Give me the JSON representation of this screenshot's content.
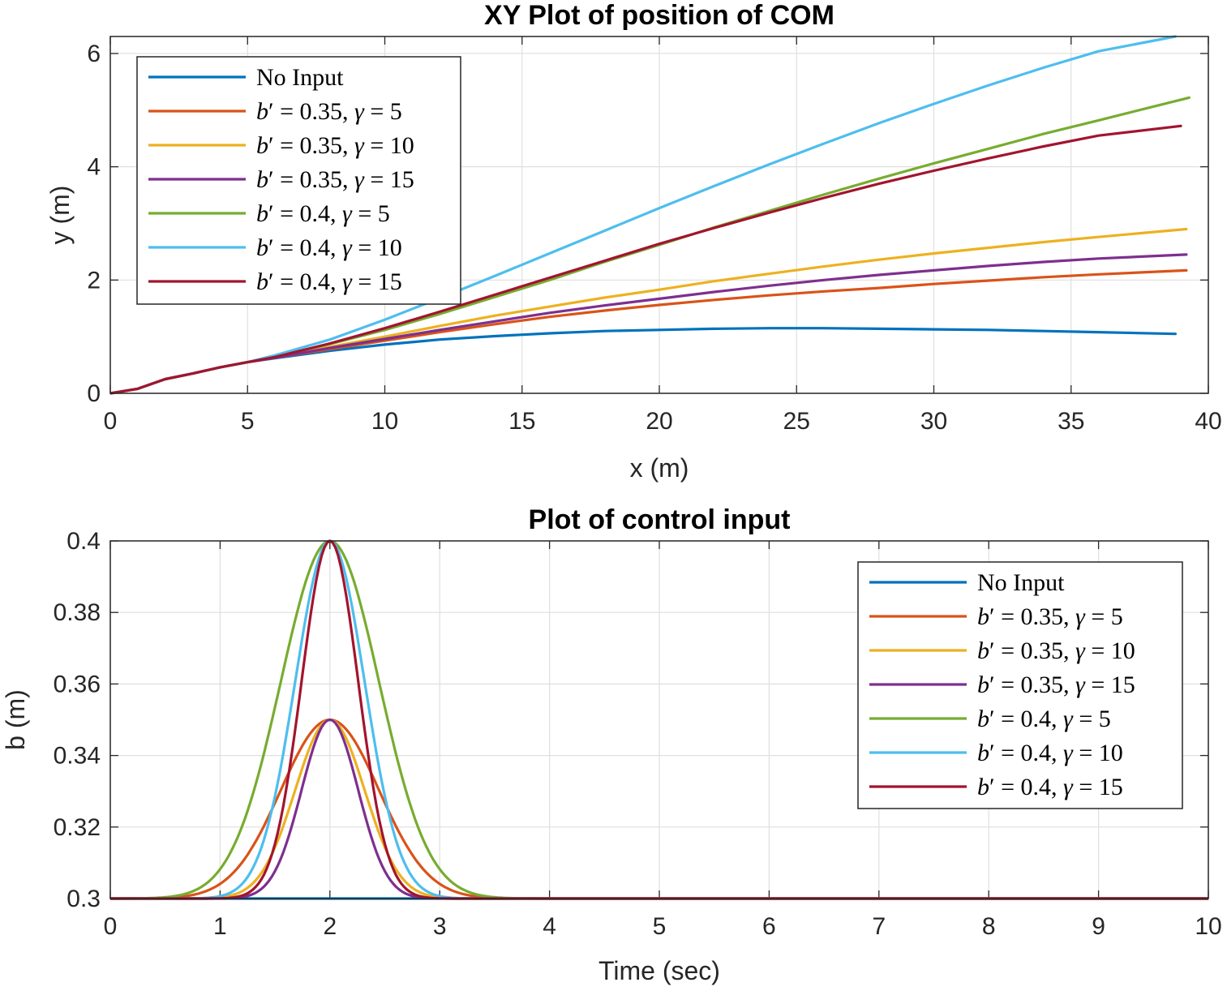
{
  "chart_data": [
    {
      "type": "line",
      "title": "XY Plot of position of COM",
      "xlabel": "x (m)",
      "ylabel": "y (m)",
      "xlim": [
        0,
        40
      ],
      "ylim": [
        0,
        6.3
      ],
      "xticks": [
        "0",
        "5",
        "10",
        "15",
        "20",
        "25",
        "30",
        "35",
        "40"
      ],
      "yticks": [
        "0",
        "2",
        "4",
        "6"
      ],
      "grid": true,
      "legend_position": "top-left",
      "series": [
        {
          "name": "No Input",
          "color": "#0072BD",
          "x": [
            0,
            1,
            2,
            3,
            4,
            5,
            6,
            8,
            10,
            12,
            14,
            16,
            18,
            20,
            22,
            24,
            26,
            28,
            30,
            32,
            34,
            36,
            38.8
          ],
          "y": [
            0,
            0.08,
            0.25,
            0.35,
            0.46,
            0.55,
            0.62,
            0.75,
            0.86,
            0.95,
            1.01,
            1.06,
            1.1,
            1.12,
            1.14,
            1.15,
            1.15,
            1.14,
            1.13,
            1.12,
            1.1,
            1.08,
            1.05
          ]
        },
        {
          "name": "b' = 0.35, γ = 5",
          "color": "#D95319",
          "x": [
            0,
            1,
            2,
            3,
            4,
            5,
            6,
            8,
            10,
            12,
            14,
            16,
            18,
            20,
            22,
            24,
            26,
            28,
            30,
            32,
            34,
            36,
            39.2
          ],
          "y": [
            0,
            0.08,
            0.25,
            0.35,
            0.46,
            0.55,
            0.63,
            0.78,
            0.93,
            1.08,
            1.22,
            1.35,
            1.46,
            1.56,
            1.65,
            1.73,
            1.8,
            1.86,
            1.93,
            1.99,
            2.05,
            2.1,
            2.17
          ]
        },
        {
          "name": "b' = 0.35, γ = 10",
          "color": "#EDB120",
          "x": [
            0,
            1,
            2,
            3,
            4,
            5,
            6,
            8,
            10,
            12,
            14,
            16,
            18,
            20,
            22,
            24,
            26,
            28,
            30,
            32,
            34,
            36,
            39.2
          ],
          "y": [
            0,
            0.08,
            0.25,
            0.35,
            0.46,
            0.55,
            0.64,
            0.82,
            1.0,
            1.19,
            1.37,
            1.53,
            1.69,
            1.83,
            1.98,
            2.11,
            2.24,
            2.36,
            2.47,
            2.57,
            2.67,
            2.76,
            2.9
          ]
        },
        {
          "name": "b' = 0.35, γ = 15",
          "color": "#7E2F8E",
          "x": [
            0,
            1,
            2,
            3,
            4,
            5,
            6,
            8,
            10,
            12,
            14,
            16,
            18,
            20,
            22,
            24,
            26,
            28,
            30,
            32,
            34,
            36,
            39.2
          ],
          "y": [
            0,
            0.08,
            0.25,
            0.35,
            0.46,
            0.55,
            0.63,
            0.8,
            0.96,
            1.12,
            1.27,
            1.42,
            1.55,
            1.67,
            1.79,
            1.9,
            2.0,
            2.09,
            2.17,
            2.25,
            2.32,
            2.38,
            2.45
          ]
        },
        {
          "name": "b' = 0.4, γ = 5",
          "color": "#77AC30",
          "x": [
            0,
            1,
            2,
            3,
            4,
            5,
            6,
            8,
            10,
            12,
            14,
            16,
            18,
            20,
            22,
            24,
            26,
            28,
            30,
            32,
            34,
            36,
            39.3
          ],
          "y": [
            0,
            0.08,
            0.25,
            0.35,
            0.46,
            0.55,
            0.65,
            0.87,
            1.12,
            1.4,
            1.7,
            2.0,
            2.32,
            2.62,
            2.93,
            3.22,
            3.51,
            3.79,
            4.06,
            4.32,
            4.58,
            4.82,
            5.22
          ]
        },
        {
          "name": "b' = 0.4, γ = 10",
          "color": "#4DBEEE",
          "x": [
            0,
            1,
            2,
            3,
            4,
            5,
            6,
            8,
            10,
            12,
            14,
            16,
            18,
            20,
            22,
            24,
            26,
            28,
            30,
            32,
            34,
            36,
            38.8
          ],
          "y": [
            0,
            0.08,
            0.25,
            0.35,
            0.46,
            0.55,
            0.67,
            0.95,
            1.3,
            1.68,
            2.07,
            2.47,
            2.87,
            3.27,
            3.66,
            4.04,
            4.41,
            4.77,
            5.11,
            5.44,
            5.75,
            6.04,
            6.3
          ]
        },
        {
          "name": "b' = 0.4, γ = 15",
          "color": "#A2142F",
          "x": [
            0,
            1,
            2,
            3,
            4,
            5,
            6,
            8,
            10,
            12,
            14,
            16,
            18,
            20,
            22,
            24,
            26,
            28,
            30,
            32,
            34,
            36,
            39.0
          ],
          "y": [
            0,
            0.08,
            0.25,
            0.35,
            0.46,
            0.55,
            0.64,
            0.88,
            1.15,
            1.44,
            1.74,
            2.04,
            2.34,
            2.64,
            2.92,
            3.19,
            3.45,
            3.7,
            3.93,
            4.15,
            4.36,
            4.55,
            4.72
          ]
        }
      ]
    },
    {
      "type": "line",
      "title": "Plot of control input",
      "xlabel": "Time (sec)",
      "ylabel": "b (m)",
      "xlim": [
        0,
        10
      ],
      "ylim": [
        0.3,
        0.4
      ],
      "xticks": [
        "0",
        "1",
        "2",
        "3",
        "4",
        "5",
        "6",
        "7",
        "8",
        "9",
        "10"
      ],
      "yticks": [
        "0.3",
        "0.32",
        "0.34",
        "0.36",
        "0.38",
        "0.4"
      ],
      "grid": true,
      "legend_position": "top-right",
      "signal": "b(t) = 0.3 + (b' - 0.3) * exp(-(gamma/2) * (t - 2)^2)",
      "series": [
        {
          "name": "No Input",
          "color": "#0072BD",
          "b_peak": 0.3,
          "gamma": 0
        },
        {
          "name": "b' = 0.35, γ = 5",
          "color": "#D95319",
          "b_peak": 0.35,
          "gamma": 5
        },
        {
          "name": "b' = 0.35, γ = 10",
          "color": "#EDB120",
          "b_peak": 0.35,
          "gamma": 10
        },
        {
          "name": "b' = 0.35, γ = 15",
          "color": "#7E2F8E",
          "b_peak": 0.35,
          "gamma": 15
        },
        {
          "name": "b' = 0.4, γ = 5",
          "color": "#77AC30",
          "b_peak": 0.4,
          "gamma": 5
        },
        {
          "name": "b' = 0.4, γ = 10",
          "color": "#4DBEEE",
          "b_peak": 0.4,
          "gamma": 10
        },
        {
          "name": "b' = 0.4, γ = 15",
          "color": "#A2142F",
          "b_peak": 0.4,
          "gamma": 15
        }
      ]
    }
  ]
}
